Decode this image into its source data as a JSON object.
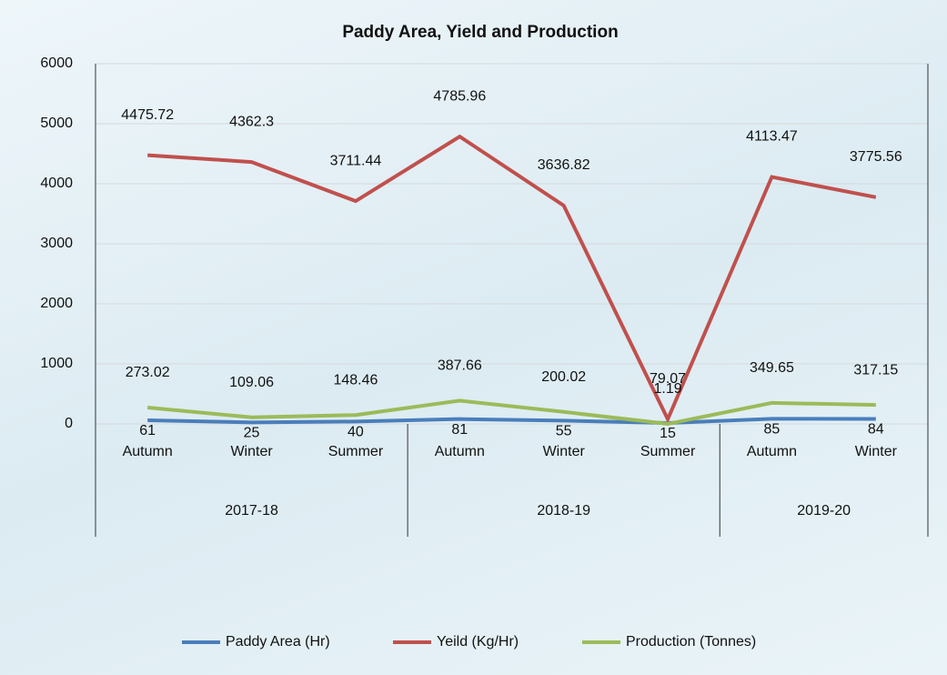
{
  "chart_data": {
    "type": "line",
    "title": "Paddy Area, Yield and Production",
    "categories": [
      "Autumn",
      "Winter",
      "Summer",
      "Autumn",
      "Winter",
      "Summer",
      "Autumn",
      "Winter"
    ],
    "category_groups": [
      {
        "label": "2017-18",
        "count": 3
      },
      {
        "label": "2018-19",
        "count": 3
      },
      {
        "label": "2019-20",
        "count": 2
      }
    ],
    "series": [
      {
        "name": "Paddy Area (Hr)",
        "color": "#4a7ebb",
        "values": [
          61,
          25,
          40,
          81,
          55,
          15,
          85,
          84
        ]
      },
      {
        "name": "Yeild (Kg/Hr)",
        "color": "#c0504d",
        "values": [
          4475.72,
          4362.3,
          3711.44,
          4785.96,
          3636.82,
          79.07,
          4113.47,
          3775.56
        ]
      },
      {
        "name": "Production (Tonnes)",
        "color": "#9bbb59",
        "values": [
          273.02,
          109.06,
          148.46,
          387.66,
          200.02,
          1.19,
          349.65,
          317.15
        ]
      }
    ],
    "ylim": [
      0,
      6000
    ],
    "yticks": [
      0,
      1000,
      2000,
      3000,
      4000,
      5000,
      6000
    ],
    "grid": true,
    "legend": "bottom"
  }
}
